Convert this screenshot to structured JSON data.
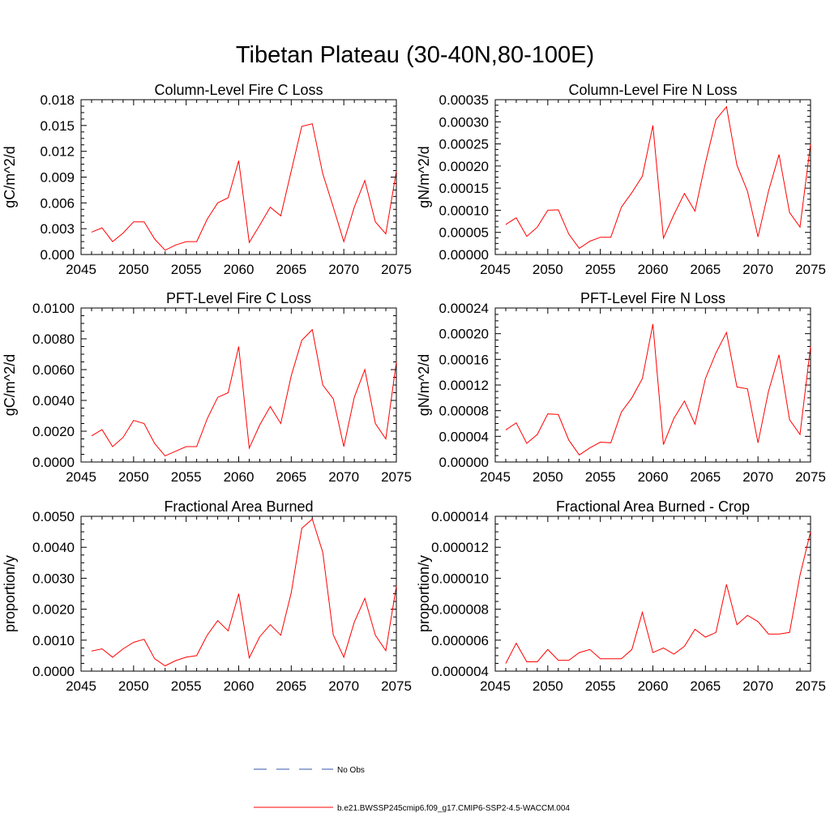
{
  "figure_title": "Tibetan Plateau (30-40N,80-100E)",
  "colors": {
    "model_line": "#ff0000",
    "obs_line": "#3355aa",
    "axis": "#000000"
  },
  "legend": {
    "obs_label": "No Obs",
    "model_label": "b.e21.BWSSP245cmip6.f09_g17.CMIP6-SSP2-4.5-WACCM.004"
  },
  "chart_data": [
    {
      "type": "line",
      "title": "Column-Level Fire C Loss",
      "xlabel": "",
      "ylabel": "gC/m^2/d",
      "xlim": [
        2045,
        2075
      ],
      "ylim": [
        0,
        0.018
      ],
      "xticks": [
        "2045",
        "2050",
        "2055",
        "2060",
        "2065",
        "2070",
        "2075"
      ],
      "yticks": [
        "0.000",
        "0.003",
        "0.006",
        "0.009",
        "0.012",
        "0.015",
        "0.018"
      ],
      "x": [
        2046,
        2047,
        2048,
        2049,
        2050,
        2051,
        2052,
        2053,
        2054,
        2055,
        2056,
        2057,
        2058,
        2059,
        2060,
        2061,
        2062,
        2063,
        2064,
        2065,
        2066,
        2067,
        2068,
        2069,
        2070,
        2071,
        2072,
        2073,
        2074,
        2075
      ],
      "series": [
        {
          "values": [
            0.0026,
            0.0031,
            0.0015,
            0.0025,
            0.0038,
            0.0038,
            0.0018,
            0.0005,
            0.0011,
            0.0015,
            0.0015,
            0.0041,
            0.006,
            0.0066,
            0.0109,
            0.0014,
            0.0034,
            0.0055,
            0.0045,
            0.0097,
            0.0149,
            0.0152,
            0.0094,
            0.0055,
            0.0015,
            0.0055,
            0.0086,
            0.0038,
            0.0024,
            0.0097
          ]
        }
      ]
    },
    {
      "type": "line",
      "title": "Column-Level Fire N Loss",
      "xlabel": "",
      "ylabel": "gN/m^2/d",
      "xlim": [
        2045,
        2075
      ],
      "ylim": [
        0,
        0.00035
      ],
      "xticks": [
        "2045",
        "2050",
        "2055",
        "2060",
        "2065",
        "2070",
        "2075"
      ],
      "yticks": [
        "0.00000",
        "0.00005",
        "0.00010",
        "0.00015",
        "0.00020",
        "0.00025",
        "0.00030",
        "0.00035"
      ],
      "x": [
        2046,
        2047,
        2048,
        2049,
        2050,
        2051,
        2052,
        2053,
        2054,
        2055,
        2056,
        2057,
        2058,
        2059,
        2060,
        2061,
        2062,
        2063,
        2064,
        2065,
        2066,
        2067,
        2068,
        2069,
        2070,
        2071,
        2072,
        2073,
        2074,
        2075
      ],
      "series": [
        {
          "values": [
            6.8e-05,
            8.3e-05,
            4.1e-05,
            6.2e-05,
            0.0001,
            0.000101,
            4.6e-05,
            1.4e-05,
            3e-05,
            3.9e-05,
            3.9e-05,
            0.000107,
            0.00014,
            0.000177,
            0.000292,
            3.7e-05,
            9e-05,
            0.000138,
            9.8e-05,
            0.000207,
            0.000305,
            0.000334,
            0.000202,
            0.000143,
            4e-05,
            0.000143,
            0.000226,
            9.5e-05,
            6.2e-05,
            0.00025
          ]
        }
      ]
    },
    {
      "type": "line",
      "title": "PFT-Level Fire C Loss",
      "xlabel": "",
      "ylabel": "gC/m^2/d",
      "xlim": [
        2045,
        2075
      ],
      "ylim": [
        0,
        0.01
      ],
      "xticks": [
        "2045",
        "2050",
        "2055",
        "2060",
        "2065",
        "2070",
        "2075"
      ],
      "yticks": [
        "0.0000",
        "0.0020",
        "0.0040",
        "0.0060",
        "0.0080",
        "0.0100"
      ],
      "x": [
        2046,
        2047,
        2048,
        2049,
        2050,
        2051,
        2052,
        2053,
        2054,
        2055,
        2056,
        2057,
        2058,
        2059,
        2060,
        2061,
        2062,
        2063,
        2064,
        2065,
        2066,
        2067,
        2068,
        2069,
        2070,
        2071,
        2072,
        2073,
        2074,
        2075
      ],
      "series": [
        {
          "values": [
            0.0017,
            0.0021,
            0.001,
            0.0016,
            0.0027,
            0.0025,
            0.0012,
            0.0004,
            0.0007,
            0.001,
            0.001,
            0.0028,
            0.0042,
            0.0045,
            0.0075,
            0.0009,
            0.0024,
            0.0036,
            0.0025,
            0.0056,
            0.0079,
            0.0086,
            0.005,
            0.0041,
            0.001,
            0.0042,
            0.006,
            0.0025,
            0.0015,
            0.0065
          ]
        }
      ]
    },
    {
      "type": "line",
      "title": "PFT-Level Fire N Loss",
      "xlabel": "",
      "ylabel": "gN/m^2/d",
      "xlim": [
        2045,
        2075
      ],
      "ylim": [
        0,
        0.00024
      ],
      "xticks": [
        "2045",
        "2050",
        "2055",
        "2060",
        "2065",
        "2070",
        "2075"
      ],
      "yticks": [
        "0.00000",
        "0.00004",
        "0.00008",
        "0.00012",
        "0.00016",
        "0.00020",
        "0.00024"
      ],
      "x": [
        2046,
        2047,
        2048,
        2049,
        2050,
        2051,
        2052,
        2053,
        2054,
        2055,
        2056,
        2057,
        2058,
        2059,
        2060,
        2061,
        2062,
        2063,
        2064,
        2065,
        2066,
        2067,
        2068,
        2069,
        2070,
        2071,
        2072,
        2073,
        2074,
        2075
      ],
      "series": [
        {
          "values": [
            5e-05,
            6.1e-05,
            2.9e-05,
            4.3e-05,
            7.5e-05,
            7.4e-05,
            3.4e-05,
            1.1e-05,
            2.2e-05,
            3.1e-05,
            3e-05,
            7.8e-05,
            0.0001,
            0.00013,
            0.000215,
            2.7e-05,
            6.8e-05,
            9.5e-05,
            5.9e-05,
            0.00013,
            0.00017,
            0.000202,
            0.000117,
            0.000114,
            3e-05,
            0.00011,
            0.000167,
            6.6e-05,
            4.3e-05,
            0.00018
          ]
        }
      ]
    },
    {
      "type": "line",
      "title": "Fractional Area Burned",
      "xlabel": "",
      "ylabel": "proportion/y",
      "xlim": [
        2045,
        2075
      ],
      "ylim": [
        0,
        0.005
      ],
      "xticks": [
        "2045",
        "2050",
        "2055",
        "2060",
        "2065",
        "2070",
        "2075"
      ],
      "yticks": [
        "0.0000",
        "0.0010",
        "0.0020",
        "0.0030",
        "0.0040",
        "0.0050"
      ],
      "x": [
        2046,
        2047,
        2048,
        2049,
        2050,
        2051,
        2052,
        2053,
        2054,
        2055,
        2056,
        2057,
        2058,
        2059,
        2060,
        2061,
        2062,
        2063,
        2064,
        2065,
        2066,
        2067,
        2068,
        2069,
        2070,
        2071,
        2072,
        2073,
        2074,
        2075
      ],
      "series": [
        {
          "values": [
            0.00065,
            0.00072,
            0.00045,
            0.00072,
            0.00093,
            0.00103,
            0.0004,
            0.00017,
            0.00034,
            0.00045,
            0.0005,
            0.00116,
            0.00163,
            0.0013,
            0.0025,
            0.00043,
            0.00111,
            0.0015,
            0.00116,
            0.00253,
            0.00461,
            0.00491,
            0.00384,
            0.00117,
            0.00045,
            0.00158,
            0.00235,
            0.00116,
            0.00066,
            0.00275
          ]
        }
      ]
    },
    {
      "type": "line",
      "title": "Fractional Area Burned - Crop",
      "xlabel": "",
      "ylabel": "proportion/y",
      "xlim": [
        2045,
        2075
      ],
      "ylim": [
        4e-06,
        1.4e-05
      ],
      "xticks": [
        "2045",
        "2050",
        "2055",
        "2060",
        "2065",
        "2070",
        "2075"
      ],
      "yticks": [
        "0.000004",
        "0.000006",
        "0.000008",
        "0.000010",
        "0.000012",
        "0.000014"
      ],
      "x": [
        2046,
        2047,
        2048,
        2049,
        2050,
        2051,
        2052,
        2053,
        2054,
        2055,
        2056,
        2057,
        2058,
        2059,
        2060,
        2061,
        2062,
        2063,
        2064,
        2065,
        2066,
        2067,
        2068,
        2069,
        2070,
        2071,
        2072,
        2073,
        2074,
        2075
      ],
      "series": [
        {
          "values": [
            4.5e-06,
            5.8e-06,
            4.6e-06,
            4.6e-06,
            5.4e-06,
            4.7e-06,
            4.7e-06,
            5.2e-06,
            5.4e-06,
            4.8e-06,
            4.8e-06,
            4.8e-06,
            5.4e-06,
            7.8e-06,
            5.2e-06,
            5.5e-06,
            5.1e-06,
            5.6e-06,
            6.7e-06,
            6.2e-06,
            6.5e-06,
            9.6e-06,
            7e-06,
            7.6e-06,
            7.2e-06,
            6.4e-06,
            6.4e-06,
            6.5e-06,
            1.02e-05,
            1.3e-05
          ]
        }
      ]
    }
  ]
}
